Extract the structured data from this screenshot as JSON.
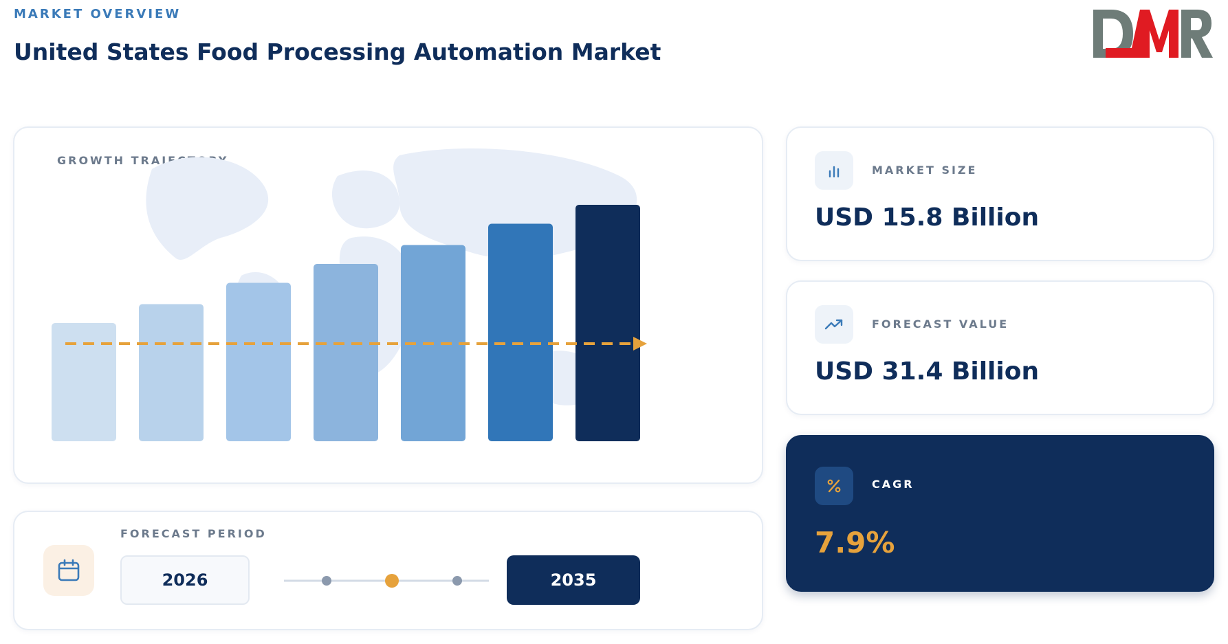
{
  "header": {
    "eyebrow": "MARKET OVERVIEW",
    "title": "United States Food Processing Automation Market"
  },
  "logo": {
    "text": "DMR",
    "colors": {
      "d": "#6e7c78",
      "m": "#e01b22",
      "r": "#6e7c78"
    }
  },
  "growth": {
    "label": "GROWTH TRAJECTORY",
    "trend_arrow_color": "#e6a23c",
    "map_color": "#e8eef8"
  },
  "chart_data": {
    "type": "bar",
    "title": "",
    "xlabel": "",
    "ylabel": "",
    "relative_heights": [
      0.5,
      0.58,
      0.67,
      0.75,
      0.83,
      0.92,
      1.0
    ],
    "colors": [
      "#cddff0",
      "#b8d2eb",
      "#a3c5e8",
      "#8cb4dd",
      "#72a5d6",
      "#3176b8",
      "#0f2d5a"
    ],
    "trend_line": {
      "style": "dashed",
      "direction": "up-right"
    }
  },
  "stats": {
    "market_size": {
      "label": "MARKET SIZE",
      "value": "USD 15.8 Billion",
      "icon": "bar-chart-icon"
    },
    "forecast_value": {
      "label": "FORECAST VALUE",
      "value": "USD 31.4 Billion",
      "icon": "trending-up-icon"
    },
    "cagr": {
      "label": "CAGR",
      "value": "7.9%",
      "icon": "percent-icon"
    }
  },
  "forecast_period": {
    "label": "FORECAST PERIOD",
    "start_year": "2026",
    "end_year": "2035",
    "icon": "calendar-icon",
    "timeline_dots": 3,
    "active_dot_index": 1,
    "active_color": "#e6a23c"
  },
  "colors": {
    "navy": "#0f2d5a",
    "accent_blue": "#3a7ab8",
    "gold": "#e6a23c",
    "muted": "#6c7a8c"
  }
}
